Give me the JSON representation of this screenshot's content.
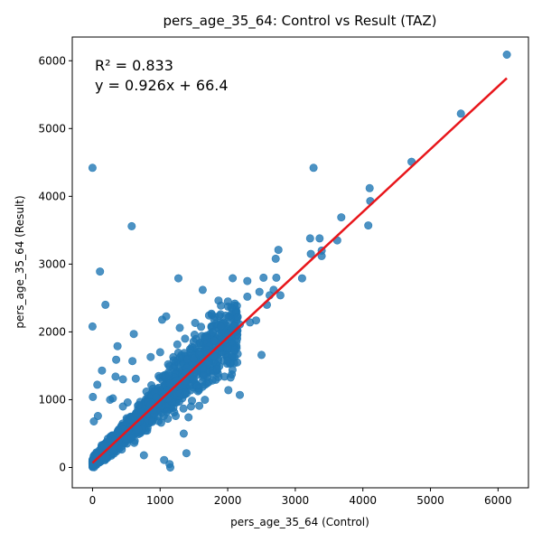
{
  "chart_data": {
    "type": "scatter",
    "title": "pers_age_35_64: Control vs Result (TAZ)",
    "xlabel": "pers_age_35_64 (Control)",
    "ylabel": "pers_age_35_64 (Result)",
    "xlim": [
      -300,
      6450
    ],
    "ylim": [
      -300,
      6350
    ],
    "xticks": [
      0,
      1000,
      2000,
      3000,
      4000,
      5000,
      6000
    ],
    "yticks": [
      0,
      1000,
      2000,
      3000,
      4000,
      5000,
      6000
    ],
    "annotation": {
      "r2_text": "R² = 0.833",
      "equation_text": "y = 0.926x + 66.4"
    },
    "fit": {
      "slope": 0.926,
      "intercept": 66.4,
      "x_range": [
        0,
        6130
      ]
    },
    "series_color": "#1f77b4",
    "fit_color": "#e8161b",
    "grid": false,
    "outliers": [
      [
        0,
        4420
      ],
      [
        0,
        2080
      ],
      [
        5,
        1040
      ],
      [
        110,
        2890
      ],
      [
        190,
        2400
      ],
      [
        580,
        3560
      ],
      [
        610,
        1970
      ],
      [
        370,
        1790
      ],
      [
        3270,
        4420
      ],
      [
        4720,
        4510
      ],
      [
        5450,
        5220
      ],
      [
        6130,
        6090
      ],
      [
        4100,
        4120
      ],
      [
        4110,
        3930
      ],
      [
        4080,
        3570
      ],
      [
        3680,
        3690
      ],
      [
        3620,
        3350
      ],
      [
        3220,
        3380
      ],
      [
        3360,
        3380
      ],
      [
        3390,
        3200
      ],
      [
        3390,
        3120
      ],
      [
        3230,
        3150
      ],
      [
        2750,
        3210
      ],
      [
        2710,
        3080
      ],
      [
        3100,
        2790
      ],
      [
        2470,
        2590
      ],
      [
        2530,
        2800
      ],
      [
        2720,
        2800
      ],
      [
        2780,
        2540
      ],
      [
        2680,
        2620
      ],
      [
        2620,
        2540
      ],
      [
        2580,
        2400
      ],
      [
        2290,
        2520
      ],
      [
        2290,
        2750
      ],
      [
        2500,
        1660
      ],
      [
        2180,
        1070
      ],
      [
        2010,
        1140
      ],
      [
        1390,
        210
      ],
      [
        1060,
        110
      ],
      [
        1140,
        50
      ],
      [
        1150,
        0
      ],
      [
        1270,
        2790
      ],
      [
        1630,
        2620
      ],
      [
        1290,
        2060
      ],
      [
        1090,
        2230
      ],
      [
        1030,
        2180
      ],
      [
        1000,
        1700
      ],
      [
        860,
        1630
      ],
      [
        590,
        1570
      ],
      [
        350,
        1590
      ],
      [
        140,
        1430
      ],
      [
        70,
        1220
      ],
      [
        340,
        1340
      ],
      [
        450,
        1300
      ],
      [
        640,
        1310
      ],
      [
        1350,
        500
      ],
      [
        1420,
        740
      ],
      [
        760,
        180
      ],
      [
        1370,
        1900
      ],
      [
        1760,
        2270
      ],
      [
        1970,
        2240
      ],
      [
        2050,
        2360
      ],
      [
        2180,
        2110
      ],
      [
        2330,
        2140
      ],
      [
        2420,
        2170
      ],
      [
        1800,
        2180
      ],
      [
        1900,
        2080
      ],
      [
        1230,
        760
      ],
      [
        1500,
        1300
      ],
      [
        1720,
        1260
      ],
      [
        1840,
        1450
      ],
      [
        1640,
        1600
      ],
      [
        1290,
        1620
      ],
      [
        1200,
        1580
      ],
      [
        520,
        960
      ],
      [
        450,
        900
      ],
      [
        80,
        760
      ],
      [
        20,
        680
      ],
      [
        260,
        1000
      ],
      [
        300,
        1020
      ]
    ],
    "cluster": {
      "count": 1700,
      "seed": 7,
      "max_x": 2150
    }
  }
}
